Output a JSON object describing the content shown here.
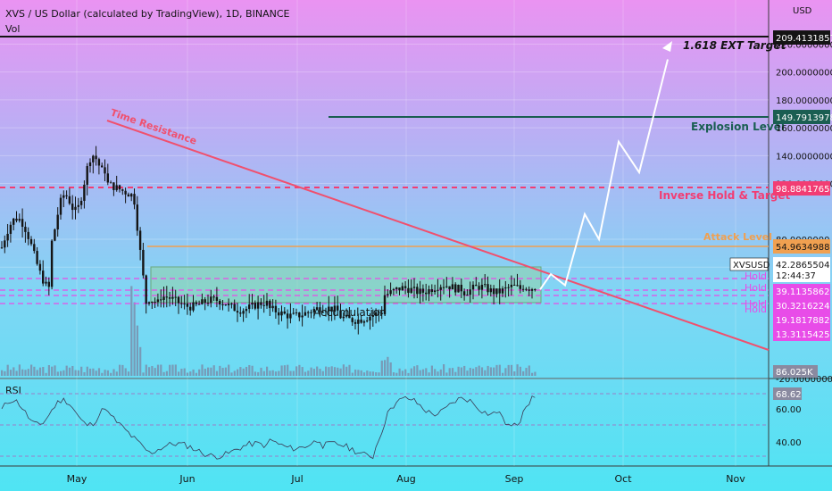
{
  "header": {
    "title": "XVS / US Dollar (calculated by TradingView), 1D, BINANCE",
    "volume_label": "Vol",
    "currency": "USD"
  },
  "colors": {
    "price": "#141414",
    "downtrend": "#f0506e",
    "explosion": "#1a5e52",
    "inverse": "#f23d73",
    "attack": "#f0a050",
    "hold": "#e84ce8",
    "projection": "#ffffff",
    "accumulation_fill": "#8fd4a8"
  },
  "chart_data": {
    "type": "candlestick",
    "symbol": "XVSUSD",
    "timeframe": "1D",
    "x_tick_labels": [
      "May",
      "Jun",
      "Jul",
      "Aug",
      "Sep",
      "Oct",
      "Nov"
    ],
    "y_axis_ticks": [
      "220.0000000",
      "200.0000000",
      "180.0000000",
      "160.0000000",
      "140.0000000",
      "120.0000000",
      "80.0000000",
      "60.0000000",
      "-20.0000000"
    ],
    "ylim": [
      -30,
      230
    ],
    "current_price": {
      "label": "XVSUSD",
      "value": "42.2865504",
      "countdown": "12:44:37"
    },
    "volume_label_value": "86.025K",
    "levels": [
      {
        "name": "1.618 EXT Target",
        "price": "209.4131857",
        "value": 209.41
      },
      {
        "name": "Explosion Level",
        "price": "149.7913978",
        "value": 149.79
      },
      {
        "name": "Inverse Hold & Target",
        "price": "98.8841765",
        "value": 98.88
      },
      {
        "name": "Attack Level",
        "price": "54.9634988",
        "value": 54.96
      },
      {
        "name": "Hold",
        "price": "39.1135862",
        "value": 39.11
      },
      {
        "name": "Hold",
        "price": "30.3216224",
        "value": 30.32
      },
      {
        "name": "Hold",
        "price": "19.1817882",
        "value": 19.18
      },
      {
        "name": "Hold",
        "price": "13.3115425",
        "value": 13.31
      }
    ],
    "annotations": {
      "time_resistance": "Time Resistance",
      "accumulation": "Accumulation"
    },
    "projection_path": [
      44,
      55,
      47,
      98,
      80,
      150,
      128,
      209
    ],
    "rsi": {
      "title": "RSI",
      "ticks": [
        "60.00",
        "40.00"
      ],
      "last_value": "68.62"
    }
  }
}
